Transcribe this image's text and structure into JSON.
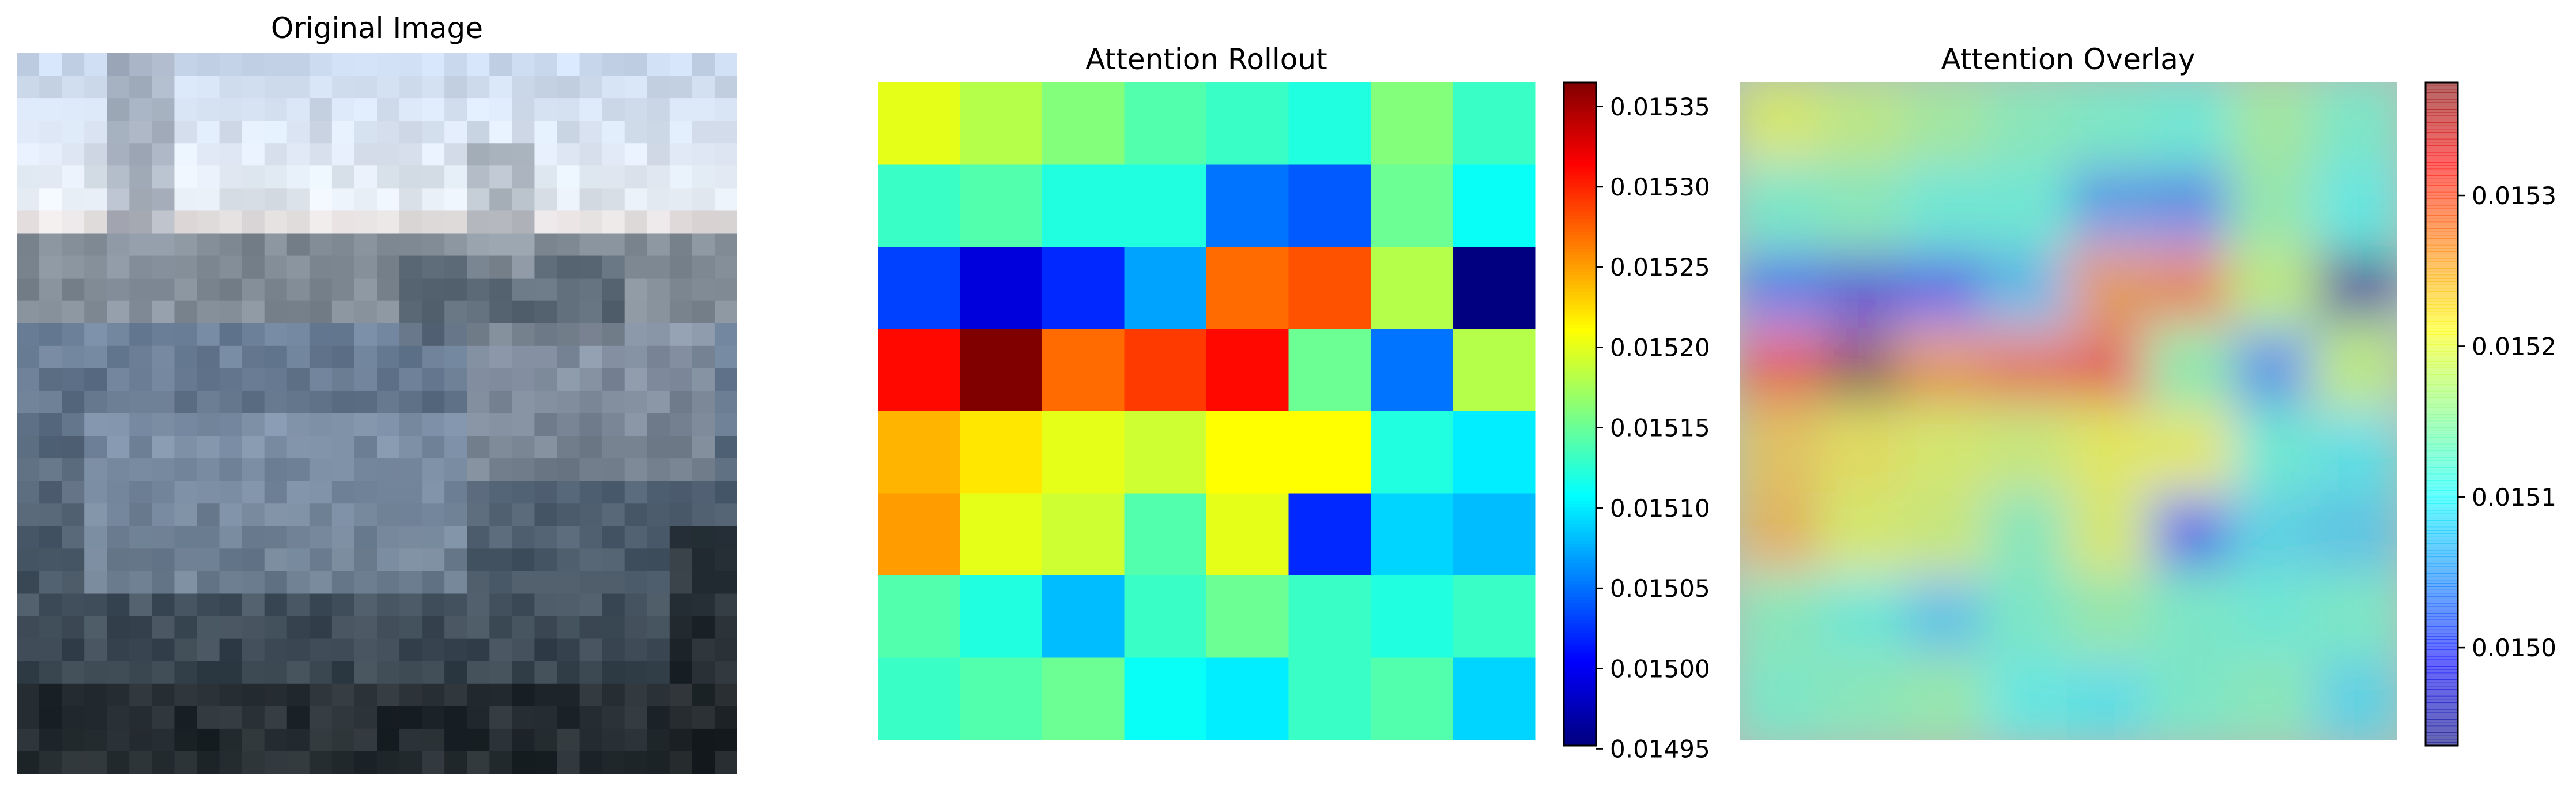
{
  "panels": {
    "original_title": "Original Image",
    "rollout_title": "Attention Rollout",
    "overlay_title": "Attention Overlay"
  },
  "chart_data": [
    {
      "type": "image",
      "title": "Original Image",
      "description_note": "",
      "grid": false
    },
    {
      "type": "heatmap",
      "title": "Attention Rollout",
      "colormap": "jet",
      "grid": false,
      "rows": 8,
      "cols": 8,
      "vmin": 0.014952,
      "vmax": 0.015365,
      "values": [
        [
          0.0152,
          0.01518,
          0.01516,
          0.01514,
          0.01513,
          0.01512,
          0.01516,
          0.01513
        ],
        [
          0.01513,
          0.01514,
          0.01512,
          0.01512,
          0.01505,
          0.01504,
          0.01515,
          0.01511
        ],
        [
          0.01503,
          0.01499,
          0.01502,
          0.01507,
          0.01527,
          0.01528,
          0.01518,
          0.01495
        ],
        [
          0.01531,
          0.01537,
          0.01527,
          0.01529,
          0.01531,
          0.01515,
          0.01505,
          0.01518
        ],
        [
          0.01524,
          0.01522,
          0.0152,
          0.01519,
          0.01521,
          0.01521,
          0.01512,
          0.0151
        ],
        [
          0.01525,
          0.0152,
          0.01519,
          0.01514,
          0.0152,
          0.01502,
          0.01509,
          0.01508
        ],
        [
          0.01514,
          0.01512,
          0.01508,
          0.01513,
          0.01515,
          0.01513,
          0.01512,
          0.01513
        ],
        [
          0.01513,
          0.01514,
          0.01515,
          0.01511,
          0.0151,
          0.01513,
          0.01514,
          0.01509
        ]
      ],
      "colorbar_ticks": [
        "0.01495",
        "0.01500",
        "0.01505",
        "0.01510",
        "0.01515",
        "0.01520",
        "0.01525",
        "0.01530",
        "0.01535"
      ]
    },
    {
      "type": "heatmap",
      "title": "Attention Overlay",
      "colormap": "jet",
      "alpha": 0.6,
      "grid": false,
      "vmin": 0.014935,
      "vmax": 0.015375,
      "colorbar_ticks": [
        "0.0150",
        "0.0151",
        "0.0152",
        "0.0153"
      ]
    }
  ]
}
